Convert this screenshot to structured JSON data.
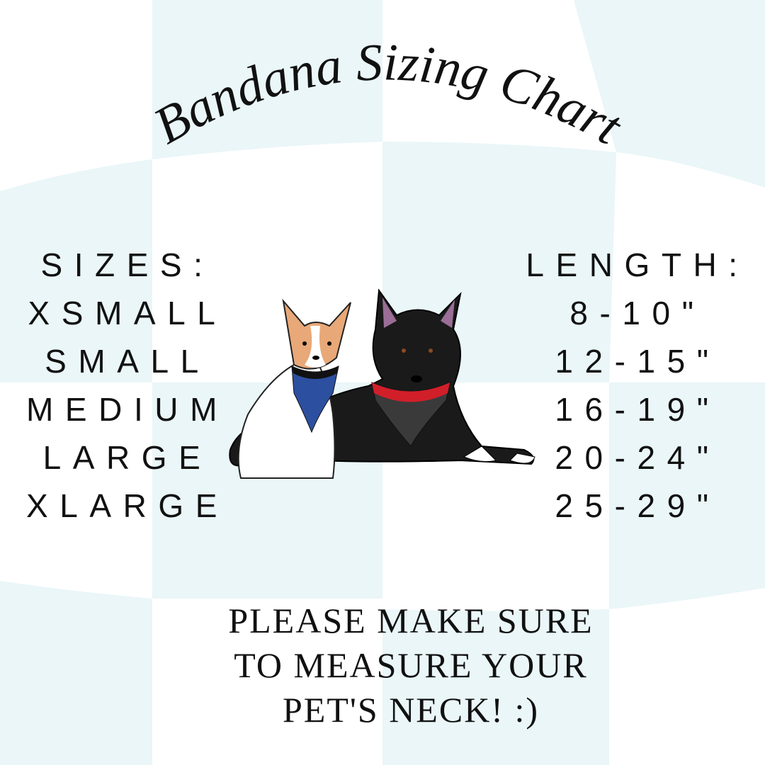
{
  "title": "Bandana  Sizing Chart",
  "sizes_header": "SIZES:",
  "length_header": "LENGTH:",
  "rows": [
    {
      "size": "XSMALL",
      "length": "8-10\""
    },
    {
      "size": "SMALL",
      "length": "12-15\""
    },
    {
      "size": "MEDIUM",
      "length": "16-19\""
    },
    {
      "size": "LARGE",
      "length": "20-24\""
    },
    {
      "size": "XLARGE",
      "length": "25-29\""
    }
  ],
  "note": [
    "PLEASE MAKE SURE",
    "TO MEASURE YOUR",
    "PET'S NECK! :)"
  ],
  "colors": {
    "background_check": "#eaf6f8",
    "text": "#111111",
    "bandana_blue": "#2c4fa0",
    "bandana_red": "#d11f2a"
  }
}
